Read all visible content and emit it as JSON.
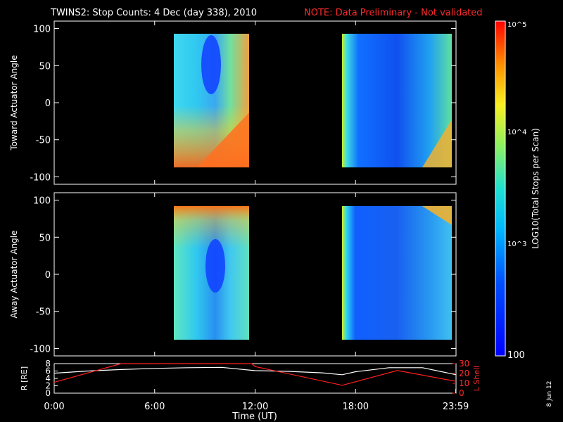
{
  "header": {
    "title": "TWINS2: Stop Counts:  4 Dec (day 338), 2010",
    "note": "NOTE: Data Preliminary - Not validated",
    "note_color": "#ff2020"
  },
  "footer": {
    "xlabel": "Time (UT)",
    "date_stamp": "8 Jun 12"
  },
  "colorbar": {
    "label": "LOG10(Total Stops per Scan)",
    "ticks": [
      "10^5",
      "10^4",
      "10^3",
      "100"
    ],
    "range": [
      100,
      100000
    ]
  },
  "chart_data": [
    {
      "type": "heatmap",
      "ylabel": "Toward Actuator Angle",
      "ylim": [
        -110,
        110
      ],
      "y_ticks": [
        "100",
        "50",
        "0",
        "-50",
        "-100"
      ],
      "xlim": [
        0,
        24
      ],
      "data_blocks": [
        {
          "t_start": "07:10",
          "t_end": "11:50",
          "angle_range": [
            -90,
            90
          ]
        },
        {
          "t_start": "17:00",
          "t_end": "23:59",
          "angle_range": [
            -90,
            90
          ]
        }
      ]
    },
    {
      "type": "heatmap",
      "ylabel": "Away Actuator Angle",
      "ylim": [
        -110,
        110
      ],
      "y_ticks": [
        "100",
        "50",
        "0",
        "-50",
        "-100"
      ],
      "xlim": [
        0,
        24
      ],
      "data_blocks": [
        {
          "t_start": "07:10",
          "t_end": "11:50",
          "angle_range": [
            -90,
            90
          ]
        },
        {
          "t_start": "17:00",
          "t_end": "23:59",
          "angle_range": [
            -90,
            90
          ]
        }
      ]
    },
    {
      "type": "line",
      "ylabel_left": "R [RE]",
      "ylabel_right": "L Shell",
      "ylim_left": [
        0,
        8
      ],
      "ylim_right": [
        0,
        30
      ],
      "y_ticks_left": [
        "8",
        "6",
        "4",
        "2",
        "0"
      ],
      "y_ticks_right": [
        "30",
        "20",
        "10",
        "0"
      ],
      "x_tick_labels": [
        "0:00",
        "6:00",
        "12:00",
        "18:00",
        "23:59"
      ],
      "series": [
        {
          "color": "#ffffff",
          "x": [
            0,
            2,
            4,
            6,
            8,
            10,
            12,
            14,
            16,
            17.2,
            18,
            20,
            22,
            24
          ],
          "y": [
            5.4,
            6.0,
            6.4,
            6.7,
            6.9,
            7.0,
            6.1,
            5.9,
            5.5,
            5.0,
            5.8,
            6.9,
            6.9,
            5.0
          ]
        },
        {
          "color": "#ff2020",
          "x": [
            0,
            4,
            4.1,
            11.8,
            12,
            17.2,
            20.5,
            24
          ],
          "y": [
            11,
            30,
            30,
            30,
            27,
            8,
            23,
            12
          ]
        }
      ]
    }
  ]
}
